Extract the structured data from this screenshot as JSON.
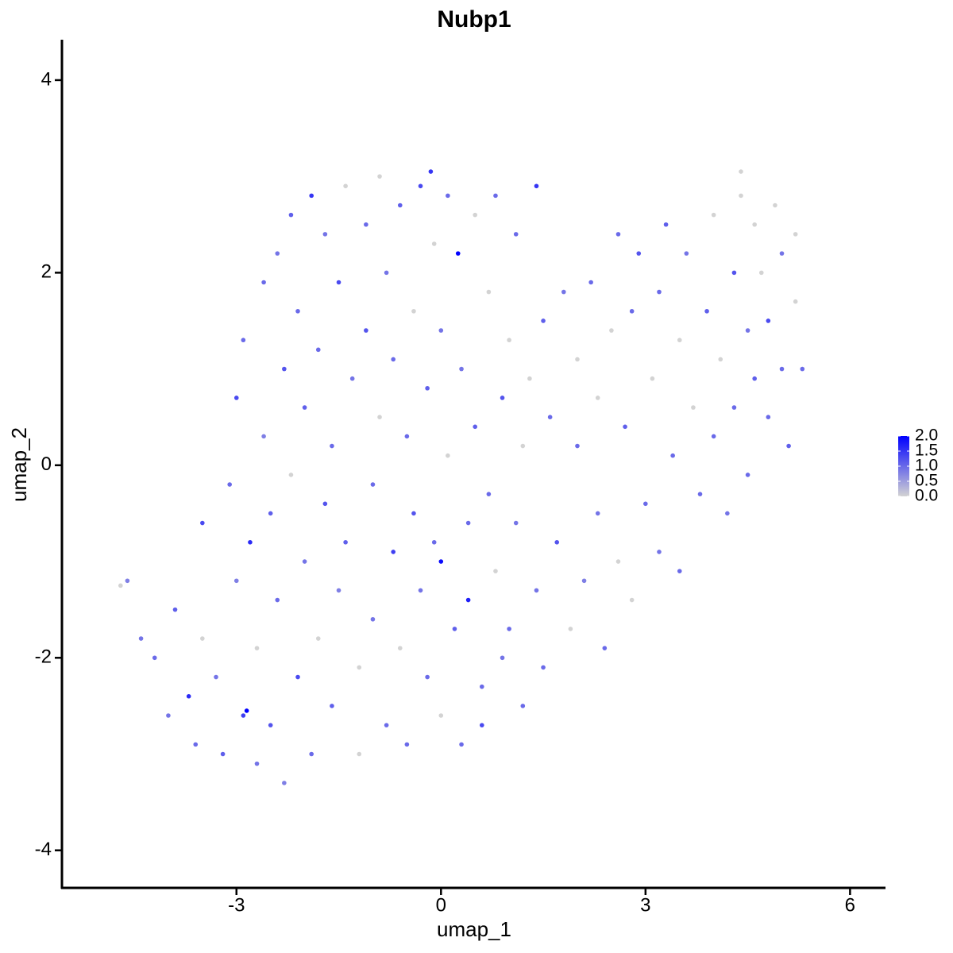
{
  "chart_data": {
    "type": "scatter",
    "title": "Nubp1",
    "xlabel": "umap_1",
    "ylabel": "umap_2",
    "xlim": [
      -5.56,
      6.52
    ],
    "ylim": [
      -4.39,
      4.42
    ],
    "xticks": [
      -3,
      0,
      3,
      6
    ],
    "yticks": [
      -4,
      -2,
      0,
      2,
      4
    ],
    "x": [
      -4.7,
      -4.6,
      -4.4,
      -4.2,
      -4.0,
      -3.9,
      -3.7,
      -3.6,
      -3.5,
      -3.5,
      -3.3,
      -3.2,
      -3.1,
      -3.0,
      -3.0,
      -2.9,
      -2.9,
      -2.8,
      -2.7,
      -2.7,
      -2.6,
      -2.6,
      -2.5,
      -2.5,
      -2.4,
      -2.4,
      -2.3,
      -2.3,
      -2.2,
      -2.2,
      -2.1,
      -2.1,
      -2.0,
      -2.0,
      -1.9,
      -1.9,
      -1.8,
      -1.8,
      -1.7,
      -1.7,
      -1.6,
      -1.6,
      -1.5,
      -1.5,
      -1.4,
      -1.4,
      -1.3,
      -1.2,
      -1.2,
      -1.1,
      -1.1,
      -1.0,
      -1.0,
      -0.9,
      -0.9,
      -0.8,
      -0.8,
      -0.7,
      -0.7,
      -0.6,
      -0.6,
      -0.5,
      -0.5,
      -0.4,
      -0.4,
      -0.3,
      -0.3,
      -0.2,
      -0.2,
      -0.1,
      -0.1,
      0.0,
      0.0,
      0.0,
      0.1,
      0.1,
      0.2,
      0.25,
      0.3,
      0.3,
      0.4,
      0.4,
      0.5,
      0.5,
      0.6,
      0.6,
      0.7,
      0.7,
      0.8,
      0.8,
      0.9,
      0.9,
      1.0,
      1.0,
      1.1,
      1.1,
      1.2,
      1.2,
      1.3,
      1.4,
      1.4,
      1.5,
      1.5,
      1.6,
      1.7,
      1.8,
      1.9,
      2.0,
      2.0,
      2.1,
      2.2,
      2.3,
      2.3,
      2.4,
      2.5,
      2.6,
      2.6,
      2.7,
      2.8,
      2.8,
      2.9,
      3.0,
      3.1,
      3.2,
      3.2,
      3.3,
      3.4,
      3.5,
      3.5,
      3.6,
      3.7,
      3.8,
      3.9,
      4.0,
      4.0,
      4.1,
      4.2,
      4.3,
      4.3,
      4.4,
      4.5,
      4.5,
      4.6,
      4.6,
      4.7,
      4.8,
      4.8,
      4.9,
      5.0,
      5.0,
      5.1,
      5.2,
      5.2,
      5.3,
      4.4,
      -2.85,
      -0.15
    ],
    "y": [
      -1.25,
      -1.2,
      -1.8,
      -2.0,
      -2.6,
      -1.5,
      -2.4,
      -2.9,
      -0.6,
      -1.8,
      -2.2,
      -3.0,
      -0.2,
      -1.2,
      0.7,
      -2.6,
      1.3,
      -0.8,
      -3.1,
      -1.9,
      0.3,
      1.9,
      -0.5,
      -2.7,
      2.2,
      -1.4,
      -3.3,
      1.0,
      -0.1,
      2.6,
      -2.2,
      1.6,
      -1.0,
      0.6,
      -3.0,
      2.8,
      -1.8,
      1.2,
      -0.4,
      2.4,
      -2.5,
      0.2,
      1.9,
      -1.3,
      2.9,
      -0.8,
      0.9,
      -2.1,
      -3.0,
      2.5,
      1.4,
      -0.2,
      -1.6,
      0.5,
      3.0,
      -2.7,
      2.0,
      -0.9,
      1.1,
      -1.9,
      2.7,
      0.3,
      -2.9,
      1.6,
      -0.5,
      2.9,
      -1.3,
      0.8,
      -2.2,
      2.3,
      -0.8,
      1.4,
      -1.0,
      -2.6,
      0.1,
      2.8,
      -1.7,
      2.2,
      -2.9,
      1.0,
      -0.6,
      -1.4,
      2.6,
      0.4,
      -2.3,
      -2.7,
      1.8,
      -0.3,
      2.8,
      -1.1,
      0.7,
      -2.0,
      1.3,
      -1.7,
      2.4,
      -0.6,
      0.2,
      -2.5,
      0.9,
      2.9,
      -1.3,
      1.5,
      -2.1,
      0.5,
      -0.8,
      1.8,
      -1.7,
      1.1,
      0.2,
      -1.2,
      1.9,
      0.7,
      -0.5,
      -1.9,
      1.4,
      2.4,
      -1.0,
      0.4,
      1.6,
      -1.4,
      2.2,
      -0.4,
      0.9,
      1.8,
      -0.9,
      2.5,
      0.1,
      1.3,
      -1.1,
      2.2,
      0.6,
      -0.3,
      1.6,
      2.6,
      0.3,
      1.1,
      -0.5,
      2.0,
      0.6,
      2.8,
      1.4,
      -0.1,
      2.5,
      0.9,
      2.0,
      0.5,
      1.5,
      2.7,
      1.0,
      2.2,
      0.2,
      1.7,
      2.4,
      1.0,
      3.05,
      -2.55,
      3.05
    ],
    "expression": [
      0.0,
      0.8,
      0.9,
      1.0,
      0.9,
      1.1,
      1.6,
      1.0,
      1.3,
      0.0,
      0.9,
      1.1,
      1.0,
      0.8,
      1.3,
      1.4,
      1.0,
      1.6,
      0.9,
      0.0,
      0.8,
      1.0,
      1.1,
      1.2,
      0.9,
      1.0,
      0.8,
      1.2,
      0.0,
      1.1,
      1.3,
      1.0,
      0.9,
      1.1,
      1.0,
      1.5,
      0.0,
      1.0,
      1.2,
      0.9,
      1.1,
      1.0,
      1.3,
      0.8,
      0.0,
      1.1,
      0.9,
      0.0,
      0.0,
      1.0,
      1.2,
      1.0,
      0.9,
      0.0,
      0.0,
      1.0,
      0.9,
      1.4,
      1.0,
      0.0,
      1.1,
      1.0,
      1.0,
      0.0,
      1.2,
      1.3,
      0.9,
      1.1,
      1.0,
      0.0,
      1.0,
      0.9,
      1.9,
      0.0,
      0.0,
      1.0,
      1.1,
      2.0,
      1.0,
      0.9,
      1.0,
      1.7,
      0.0,
      1.1,
      1.0,
      1.3,
      0.0,
      1.0,
      1.0,
      0.0,
      1.2,
      0.9,
      0.0,
      1.0,
      1.0,
      0.9,
      0.0,
      1.0,
      0.0,
      1.5,
      0.9,
      1.1,
      1.0,
      1.0,
      1.2,
      0.9,
      0.0,
      0.0,
      1.0,
      0.8,
      1.0,
      0.0,
      0.9,
      1.0,
      0.0,
      1.0,
      0.0,
      1.1,
      1.0,
      0.0,
      1.2,
      1.0,
      0.0,
      1.0,
      0.9,
      1.1,
      1.0,
      0.0,
      1.0,
      0.9,
      0.0,
      1.0,
      1.1,
      0.0,
      1.0,
      0.0,
      0.9,
      1.2,
      1.0,
      0.0,
      0.9,
      1.0,
      0.0,
      1.1,
      0.0,
      1.0,
      1.3,
      0.0,
      1.0,
      0.9,
      1.1,
      0.0,
      0.0,
      1.0,
      0.0,
      2.0,
      1.5
    ],
    "color_low": "#d3d3d3",
    "color_high": "#0000ff",
    "color_lim": [
      0,
      2
    ],
    "color_ticks": [
      {
        "value": 2,
        "label": "2.0"
      },
      1.5,
      {
        "value": 1,
        "label": "1.0"
      },
      0.5,
      {
        "value": 0,
        "label": "0.0"
      }
    ]
  }
}
